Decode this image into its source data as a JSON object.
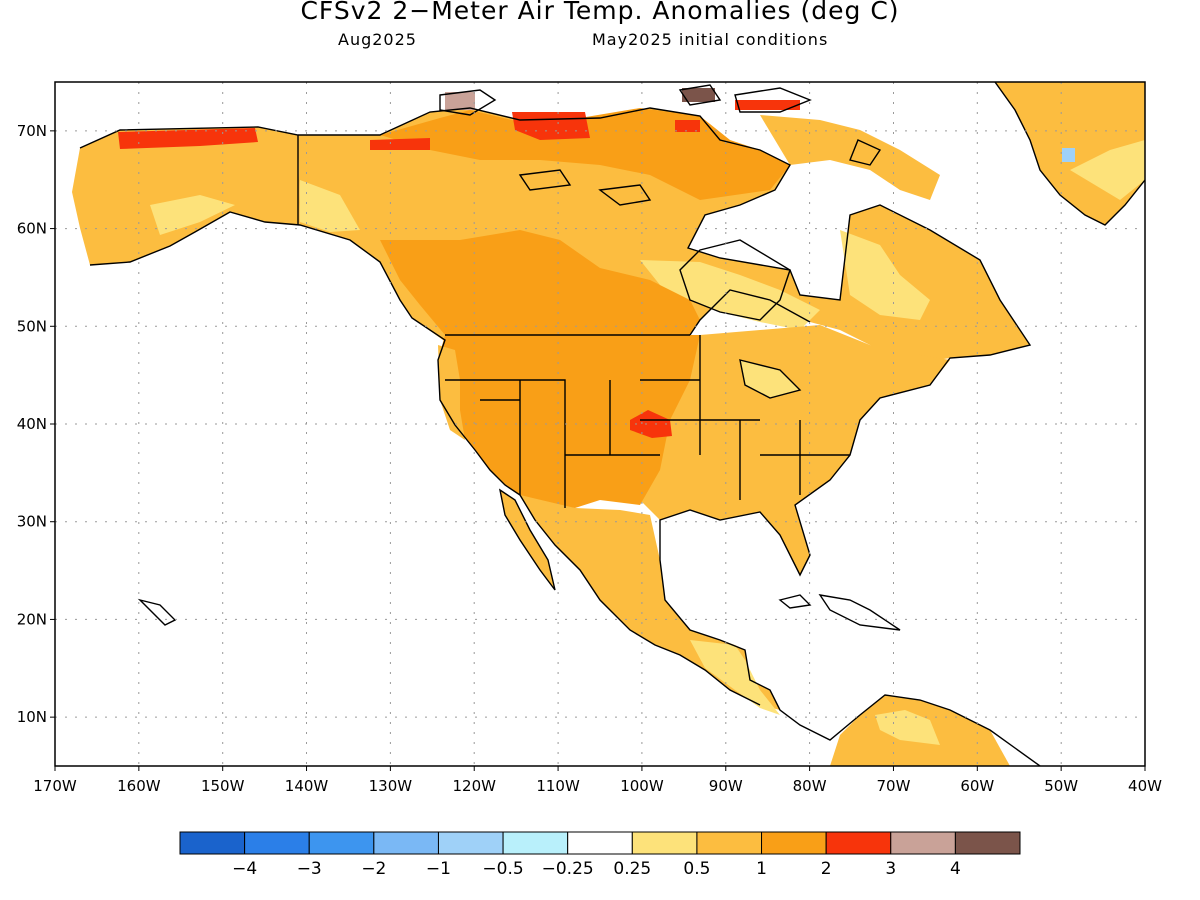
{
  "header": {
    "title": "CFSv2 2−Meter Air Temp. Anomalies (deg C)",
    "valid_month": "Aug2025",
    "init": "May2025 initial conditions"
  },
  "map": {
    "lon_range": [
      -170,
      -40
    ],
    "lat_range": [
      5,
      75
    ],
    "x_ticks": [
      "170W",
      "160W",
      "150W",
      "140W",
      "130W",
      "120W",
      "110W",
      "100W",
      "90W",
      "80W",
      "70W",
      "60W",
      "50W",
      "40W"
    ],
    "y_ticks": [
      "10N",
      "20N",
      "30N",
      "40N",
      "50N",
      "60N",
      "70N"
    ],
    "land_color": "#ffffff",
    "coast_color": "#000000",
    "grid": "dotted"
  },
  "colorbar": {
    "colors": [
      "#1a63cc",
      "#2b7fe8",
      "#3d95ef",
      "#7ab8f5",
      "#9fd1f8",
      "#b9f0fb",
      "#ffffff",
      "#fde27a",
      "#fcbd40",
      "#f99f17",
      "#f7340b",
      "#c9a298",
      "#7b544a"
    ],
    "labels": [
      "−4",
      "−3",
      "−2",
      "−1",
      "−0.5",
      "−0.25",
      "0.25",
      "0.5",
      "1",
      "2",
      "3",
      "4"
    ]
  },
  "regions": [
    {
      "name": "conus-west",
      "category": "1 to 2",
      "color": "#f99f17"
    },
    {
      "name": "conus-east",
      "category": "0.5 to 1",
      "color": "#fcbd40"
    },
    {
      "name": "great-plains-max",
      "category": "2 to 3",
      "color": "#f7340b"
    },
    {
      "name": "alaska-north-coast",
      "category": "2 to 3",
      "color": "#f7340b"
    },
    {
      "name": "arctic-islands",
      "category": "2 to 3",
      "color": "#f7340b"
    },
    {
      "name": "arctic-islands-peak",
      "category": "3 to 4",
      "color": "#c9a298"
    },
    {
      "name": "canada-interior",
      "category": "0.5 to 1",
      "color": "#fcbd40"
    },
    {
      "name": "labrador",
      "category": "0.25 to 0.5",
      "color": "#fde27a"
    },
    {
      "name": "greenland-south",
      "category": "0.5 to 1",
      "color": "#fcbd40"
    },
    {
      "name": "mexico",
      "category": "0.5 to 1",
      "color": "#fcbd40"
    },
    {
      "name": "central-america",
      "category": "0.25 to 0.5",
      "color": "#fde27a"
    },
    {
      "name": "venezuela-colombia",
      "category": "0.5 to 1",
      "color": "#fcbd40"
    }
  ]
}
